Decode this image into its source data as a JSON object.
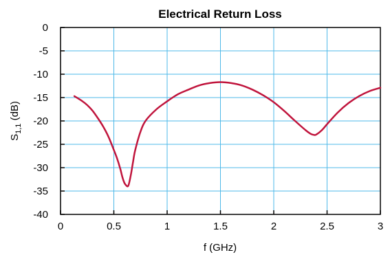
{
  "chart_data": {
    "type": "line",
    "title": "Electrical Return Loss",
    "xlabel": "f (GHz)",
    "ylabel_main": "S",
    "ylabel_sub": "1,1",
    "ylabel_unit": " (dB)",
    "xlim": [
      0,
      3
    ],
    "ylim": [
      -40,
      0
    ],
    "xticks": [
      "0",
      "0.5",
      "1",
      "1.5",
      "2",
      "2.5",
      "3"
    ],
    "yticks": [
      "0",
      "-5",
      "-10",
      "-15",
      "-20",
      "-25",
      "-30",
      "-35",
      "-40"
    ],
    "grid": true,
    "colors": {
      "line": "#c0143c",
      "grid": "#4db8e8",
      "axis": "#000000"
    },
    "series": [
      {
        "x": [
          0.13,
          0.2,
          0.25,
          0.3,
          0.35,
          0.4,
          0.45,
          0.5,
          0.53,
          0.56,
          0.58,
          0.6,
          0.62,
          0.63,
          0.64,
          0.66,
          0.68,
          0.7,
          0.75,
          0.8,
          0.9,
          1.0,
          1.1,
          1.2,
          1.3,
          1.4,
          1.5,
          1.6,
          1.7,
          1.8,
          1.9,
          2.0,
          2.1,
          2.2,
          2.3,
          2.35,
          2.38,
          2.4,
          2.45,
          2.5,
          2.6,
          2.7,
          2.8,
          2.9,
          3.0
        ],
        "y": [
          -14.7,
          -15.7,
          -16.6,
          -17.8,
          -19.4,
          -21.2,
          -23.4,
          -26.2,
          -28.0,
          -30.2,
          -32.0,
          -33.3,
          -33.9,
          -34.0,
          -33.6,
          -31.5,
          -28.8,
          -26.3,
          -22.3,
          -19.9,
          -17.5,
          -15.8,
          -14.3,
          -13.3,
          -12.4,
          -11.9,
          -11.7,
          -11.9,
          -12.4,
          -13.3,
          -14.5,
          -16.0,
          -17.9,
          -20.0,
          -22.0,
          -22.8,
          -23.0,
          -22.9,
          -22.0,
          -20.7,
          -18.2,
          -16.2,
          -14.7,
          -13.6,
          -12.9
        ]
      }
    ]
  }
}
